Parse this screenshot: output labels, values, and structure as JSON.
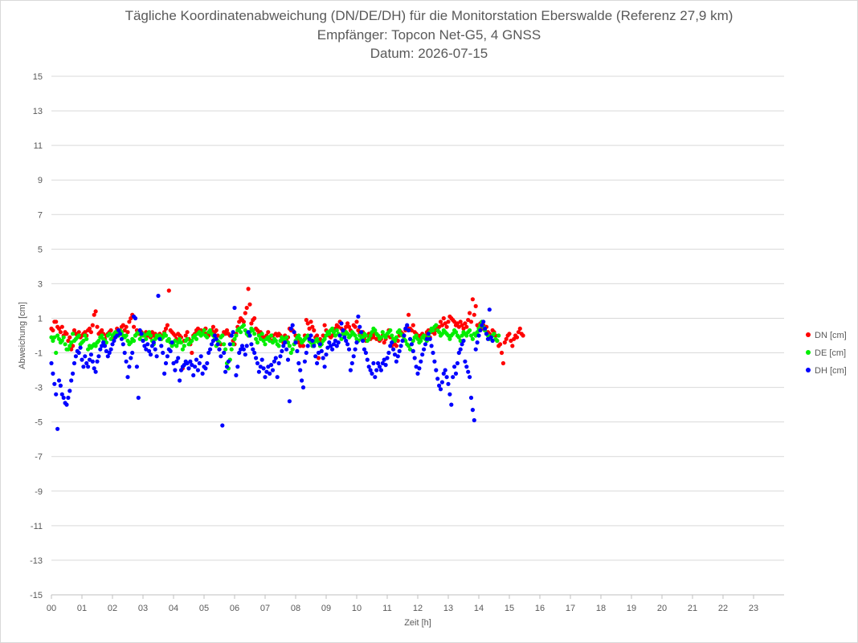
{
  "chart_data": {
    "type": "scatter",
    "title": "Tägliche Koordinatenabweichung (DN/DE/DH) für die Monitorstation Eberswalde (Referenz 27,9 km)",
    "subtitle": "Empfänger: Topcon Net-G5, 4 GNSS",
    "date_line": "Datum: 2026-07-15",
    "xlabel": "Zeit [h]",
    "ylabel": "Abweichung [cm]",
    "xlim": [
      0,
      24
    ],
    "ylim": [
      -15,
      15
    ],
    "x_ticks": [
      "00",
      "01",
      "02",
      "03",
      "04",
      "05",
      "06",
      "07",
      "08",
      "09",
      "10",
      "11",
      "12",
      "13",
      "14",
      "15",
      "16",
      "17",
      "18",
      "19",
      "20",
      "21",
      "22",
      "23"
    ],
    "y_ticks": [
      "15",
      "13",
      "11",
      "9",
      "7",
      "5",
      "3",
      "1",
      "-1",
      "-3",
      "-5",
      "-7",
      "-9",
      "-11",
      "-13",
      "-15"
    ],
    "grid": "horizontal",
    "legend_position": "right",
    "sampling_interval_h": 0.05,
    "colors": {
      "DN [cm]": "#ff0000",
      "DE [cm]": "#00ee00",
      "DH [cm]": "#0000ff"
    },
    "series": [
      {
        "name": "DN [cm]",
        "values": [
          0.4,
          0.3,
          0.8,
          0.8,
          0.5,
          0.4,
          0.2,
          0.5,
          0.0,
          0.2,
          0.1,
          -0.3,
          -0.1,
          -0.8,
          -0.6,
          0.3,
          0.1,
          0.0,
          0.2,
          -0.1,
          0.0,
          0.1,
          0.2,
          0.0,
          0.3,
          0.4,
          0.2,
          0.6,
          1.2,
          1.4,
          0.5,
          0.1,
          0.2,
          0.3,
          0.1,
          -0.2,
          0.0,
          0.1,
          0.2,
          0.3,
          0.0,
          -0.1,
          0.0,
          0.4,
          0.3,
          0.2,
          0.5,
          0.6,
          0.3,
          0.5,
          0.2,
          0.8,
          1.0,
          1.2,
          0.5,
          0.0,
          0.3,
          0.1,
          0.1,
          0.2,
          0.0,
          0.1,
          0.2,
          0.0,
          0.1,
          -0.1,
          0.2,
          0.0,
          0.1,
          0.0,
          0.0,
          0.1,
          -0.2,
          0.0,
          0.2,
          0.4,
          0.6,
          2.6,
          0.3,
          0.2,
          0.1,
          0.0,
          -0.2,
          0.1,
          0.0,
          -0.1,
          -1.9,
          -0.3,
          0.0,
          0.2,
          -0.2,
          -0.5,
          -1.0,
          0.0,
          0.1,
          0.3,
          0.4,
          0.2,
          0.3,
          0.1,
          0.2,
          0.4,
          0.1,
          0.0,
          0.2,
          0.3,
          0.5,
          0.2,
          0.3,
          0.0,
          -0.8,
          -0.5,
          0.0,
          0.2,
          0.1,
          0.3,
          0.1,
          0.0,
          0.0,
          -0.3,
          -0.5,
          0.1,
          0.5,
          0.8,
          1.0,
          0.9,
          0.8,
          1.3,
          1.6,
          2.7,
          1.8,
          0.7,
          0.9,
          1.0,
          0.4,
          0.3,
          0.1,
          0.2,
          0.0,
          -0.2,
          -0.1,
          0.0,
          0.2,
          -0.1,
          -0.3,
          0.0,
          -0.2,
          0.1,
          0.0,
          0.1,
          0.0,
          -0.2,
          -0.4,
          0.0,
          -0.3,
          -0.1,
          0.4,
          0.3,
          0.3,
          0.2,
          0.0,
          -0.2,
          -0.4,
          -0.6,
          -0.4,
          -0.6,
          0.0,
          0.9,
          0.7,
          0.4,
          0.8,
          0.5,
          0.3,
          -0.1,
          0.0,
          -1.3,
          -0.2,
          -0.3,
          0.0,
          0.6,
          0.3,
          0.2,
          0.0,
          -0.1,
          0.0,
          0.2,
          0.4,
          0.6,
          0.5,
          0.8,
          0.4,
          0.2,
          0.3,
          0.5,
          0.7,
          0.5,
          0.3,
          0.2,
          0.6,
          0.5,
          0.8,
          0.3,
          0.1,
          0.0,
          0.2,
          -0.1,
          -0.3,
          0.0,
          0.1,
          -0.2,
          0.0,
          -0.1,
          0.1,
          -0.2,
          0.0,
          -0.3,
          -0.2,
          0.0,
          -0.4,
          -0.2,
          0.0,
          0.3,
          -0.1,
          -0.6,
          -0.3,
          -0.5,
          -0.6,
          -0.3,
          0.0,
          0.2,
          0.1,
          0.0,
          0.3,
          0.5,
          1.2,
          0.4,
          0.3,
          0.6,
          0.2,
          0.1,
          0.0,
          -0.2,
          0.0,
          0.1,
          -0.1,
          0.0,
          0.2,
          0.3,
          -0.1,
          0.2,
          0.3,
          0.1,
          0.3,
          0.4,
          0.5,
          0.8,
          0.6,
          1.0,
          0.7,
          0.5,
          0.8,
          1.1,
          1.0,
          0.9,
          0.8,
          0.6,
          0.7,
          0.5,
          0.8,
          0.6,
          0.4,
          0.7,
          0.5,
          0.9,
          1.3,
          0.8,
          2.1,
          1.2,
          1.7,
          0.6,
          0.5,
          0.7,
          0.4,
          0.6,
          0.3,
          0.5,
          0.2,
          0.1,
          0.0,
          0.3,
          0.2,
          0.0,
          -0.3,
          -0.6,
          -0.5,
          -1.0,
          -1.6,
          -0.4,
          -0.2,
          0.0,
          0.1,
          -0.3,
          -0.6,
          -0.2,
          0.0,
          -0.1,
          0.2,
          0.4,
          0.1,
          0.0
        ]
      },
      {
        "name": "DE [cm]",
        "values": [
          -0.1,
          -0.3,
          -0.1,
          -1.0,
          0.0,
          -0.2,
          -0.4,
          -0.3,
          -0.1,
          -0.5,
          -0.8,
          -0.8,
          -0.6,
          -0.4,
          0.1,
          -0.3,
          -0.2,
          -0.1,
          0.0,
          -0.5,
          -0.4,
          -0.3,
          0.0,
          -0.2,
          -0.8,
          -0.6,
          -0.7,
          -0.6,
          -0.5,
          -0.6,
          -0.4,
          -0.3,
          -0.1,
          0.0,
          -0.2,
          -0.3,
          -0.4,
          0.0,
          0.1,
          -0.2,
          0.0,
          0.1,
          0.2,
          0.1,
          0.0,
          0.3,
          0.2,
          0.0,
          -0.1,
          0.0,
          -0.3,
          -0.5,
          -0.4,
          -0.2,
          -0.3,
          0.0,
          0.1,
          0.2,
          -0.2,
          0.0,
          0.1,
          0.0,
          -0.2,
          0.1,
          0.2,
          0.0,
          -0.3,
          -0.5,
          -0.2,
          0.0,
          -0.1,
          0.0,
          -0.2,
          -0.1,
          0.1,
          0.0,
          -0.3,
          -0.2,
          -0.4,
          -0.6,
          -0.5,
          -0.3,
          -0.6,
          -0.4,
          -0.2,
          -0.4,
          -0.8,
          -0.6,
          -0.3,
          -0.2,
          -0.5,
          -0.4,
          -0.3,
          -0.1,
          0.0,
          -0.2,
          0.1,
          0.2,
          0.0,
          0.1,
          0.3,
          0.0,
          -0.1,
          0.2,
          0.3,
          0.1,
          0.0,
          -0.2,
          -0.6,
          -0.3,
          -0.4,
          -0.1,
          0.0,
          -0.5,
          -0.8,
          -1.6,
          -1.9,
          -1.4,
          -0.8,
          -0.5,
          -0.2,
          0.0,
          0.3,
          0.4,
          0.2,
          0.5,
          0.6,
          0.3,
          0.1,
          0.0,
          0.2,
          0.4,
          0.3,
          0.1,
          -0.2,
          -0.4,
          0.0,
          -0.2,
          0.1,
          -0.3,
          -0.5,
          -0.2,
          -0.1,
          -0.3,
          0.0,
          -0.4,
          -0.2,
          -0.3,
          -0.5,
          -0.6,
          -0.3,
          -0.1,
          -0.2,
          -0.3,
          -0.1,
          -0.4,
          -0.6,
          -1.0,
          -0.8,
          -0.5,
          -0.3,
          -0.1,
          0.0,
          -0.2,
          -0.4,
          -0.3,
          -0.2,
          -0.1,
          0.0,
          -0.3,
          -0.4,
          -0.6,
          -0.5,
          -0.3,
          -0.2,
          -0.4,
          -0.6,
          -0.5,
          -0.3,
          -0.2,
          0.0,
          0.2,
          0.1,
          0.3,
          0.4,
          0.2,
          0.0,
          0.3,
          0.1,
          0.0,
          -0.2,
          0.1,
          0.0,
          0.2,
          0.1,
          -0.1,
          0.0,
          0.2,
          0.1,
          0.0,
          -0.2,
          -0.3,
          0.0,
          -0.2,
          -0.1,
          0.1,
          0.0,
          -0.3,
          -0.2,
          0.0,
          0.2,
          0.4,
          0.3,
          0.1,
          0.0,
          -0.2,
          -0.1,
          0.2,
          0.0,
          -0.1,
          0.1,
          0.2,
          0.3,
          0.0,
          -0.2,
          -0.3,
          -0.1,
          0.2,
          0.3,
          0.1,
          0.0,
          -0.2,
          -0.3,
          -0.5,
          -0.6,
          -0.8,
          -0.5,
          -0.3,
          -0.1,
          0.0,
          -0.2,
          -0.4,
          -0.3,
          -0.1,
          0.0,
          -0.2,
          -0.3,
          0.0,
          0.2,
          0.4,
          0.3,
          0.5,
          0.6,
          0.3,
          0.2,
          0.0,
          0.1,
          0.3,
          0.2,
          0.1,
          0.0,
          -0.2,
          0.0,
          0.1,
          0.3,
          0.2,
          0.0,
          -0.1,
          -0.3,
          0.0,
          0.2,
          0.1,
          0.0,
          0.2,
          0.3,
          0.0,
          -0.2,
          0.1,
          0.0,
          0.2,
          0.4,
          0.6,
          0.8,
          0.5,
          0.3,
          0.1,
          0.0,
          -0.2,
          -0.1,
          0.0,
          0.1,
          -0.2,
          -0.3,
          0.0
        ]
      },
      {
        "name": "DH [cm]",
        "values": [
          -1.6,
          -2.2,
          -2.8,
          -3.4,
          -5.4,
          -2.6,
          -2.9,
          -3.4,
          -3.6,
          -3.9,
          -4.0,
          -3.6,
          -3.2,
          -2.6,
          -2.2,
          -1.6,
          -1.2,
          -0.9,
          -1.0,
          -0.7,
          -1.4,
          -1.8,
          -1.2,
          -1.6,
          -1.8,
          -1.4,
          -1.1,
          -1.5,
          -1.9,
          -2.1,
          -1.5,
          -1.2,
          -0.8,
          -0.6,
          -0.4,
          -0.6,
          -0.9,
          -1.2,
          -1.0,
          -0.8,
          -0.5,
          -0.3,
          -0.1,
          0.0,
          0.3,
          0.1,
          -0.2,
          -0.5,
          -1.0,
          -1.5,
          -2.4,
          -1.8,
          -1.3,
          -1.0,
          1.1,
          1.0,
          -1.8,
          -3.6,
          0.3,
          0.1,
          -0.3,
          -0.6,
          -0.8,
          -0.5,
          -0.9,
          -1.1,
          -0.6,
          -0.4,
          -0.8,
          -1.2,
          2.3,
          -0.2,
          -0.6,
          -1.0,
          -2.2,
          -1.6,
          -1.2,
          -0.8,
          -0.9,
          -0.4,
          -1.6,
          -2.0,
          -1.5,
          -1.3,
          -2.6,
          -2.0,
          -1.8,
          -1.7,
          -1.5,
          -1.6,
          -1.9,
          -1.5,
          -1.7,
          -2.3,
          -1.8,
          -1.4,
          -2.0,
          -1.6,
          -1.2,
          -2.2,
          -1.8,
          -1.9,
          -1.6,
          -1.0,
          -0.8,
          -0.5,
          -0.3,
          0.0,
          -0.2,
          -0.5,
          -0.8,
          -1.2,
          -5.2,
          -1.0,
          -2.1,
          -1.8,
          -1.5,
          -0.5,
          0.0,
          0.2,
          1.6,
          -2.3,
          -1.8,
          -1.0,
          -0.8,
          -0.6,
          -0.8,
          -1.1,
          -0.6,
          0.2,
          0.0,
          -0.5,
          -0.8,
          -1.0,
          -1.3,
          -1.6,
          -2.1,
          -1.8,
          -1.4,
          -1.9,
          -2.4,
          -2.1,
          -1.8,
          -2.2,
          -1.7,
          -2.0,
          -1.5,
          -1.3,
          -2.4,
          -1.6,
          -1.2,
          -0.9,
          -0.6,
          -0.4,
          -0.8,
          -1.4,
          -3.8,
          0.4,
          0.6,
          0.2,
          -0.4,
          -0.9,
          -1.6,
          -2.0,
          -2.6,
          -3.0,
          -1.5,
          -1.0,
          -0.6,
          -0.2,
          0.0,
          -0.3,
          -0.6,
          -1.2,
          -1.6,
          -1.0,
          -0.5,
          -0.9,
          -1.3,
          -1.8,
          -1.1,
          -0.7,
          -0.4,
          -0.6,
          -0.8,
          -0.5,
          -0.3,
          -0.6,
          -0.4,
          0.0,
          0.7,
          0.3,
          -0.1,
          -0.3,
          -0.5,
          -0.8,
          -2.0,
          -1.6,
          -1.2,
          -0.8,
          -0.4,
          1.1,
          0.5,
          0.2,
          -0.3,
          -0.8,
          -1.0,
          -1.4,
          -1.8,
          -2.0,
          -2.2,
          -1.6,
          -2.4,
          -2.0,
          -1.6,
          -1.8,
          -2.0,
          -1.6,
          -1.4,
          -1.7,
          -1.3,
          -1.0,
          -0.6,
          -0.4,
          -0.8,
          -1.1,
          -1.5,
          -1.2,
          -0.9,
          -0.6,
          -0.3,
          0.0,
          0.4,
          0.6,
          0.3,
          -0.2,
          -0.5,
          -0.9,
          -1.3,
          -1.8,
          -2.2,
          -1.9,
          -1.5,
          -1.1,
          -0.8,
          -0.5,
          -0.2,
          0.1,
          -0.2,
          -0.6,
          -1.0,
          -1.5,
          -2.0,
          -2.5,
          -2.9,
          -3.1,
          -2.7,
          -2.2,
          -2.0,
          -2.4,
          -2.8,
          -3.4,
          -4.0,
          -2.4,
          -1.8,
          -2.2,
          -1.6,
          -1.0,
          -0.8,
          -0.5,
          -0.3,
          -1.5,
          -1.8,
          -2.1,
          -2.4,
          -3.6,
          -4.3,
          -4.9,
          -0.8,
          -0.4,
          0.0,
          0.3,
          0.6,
          0.8,
          0.4,
          0.1,
          -0.2,
          1.5,
          -0.1,
          -0.3
        ]
      }
    ]
  }
}
